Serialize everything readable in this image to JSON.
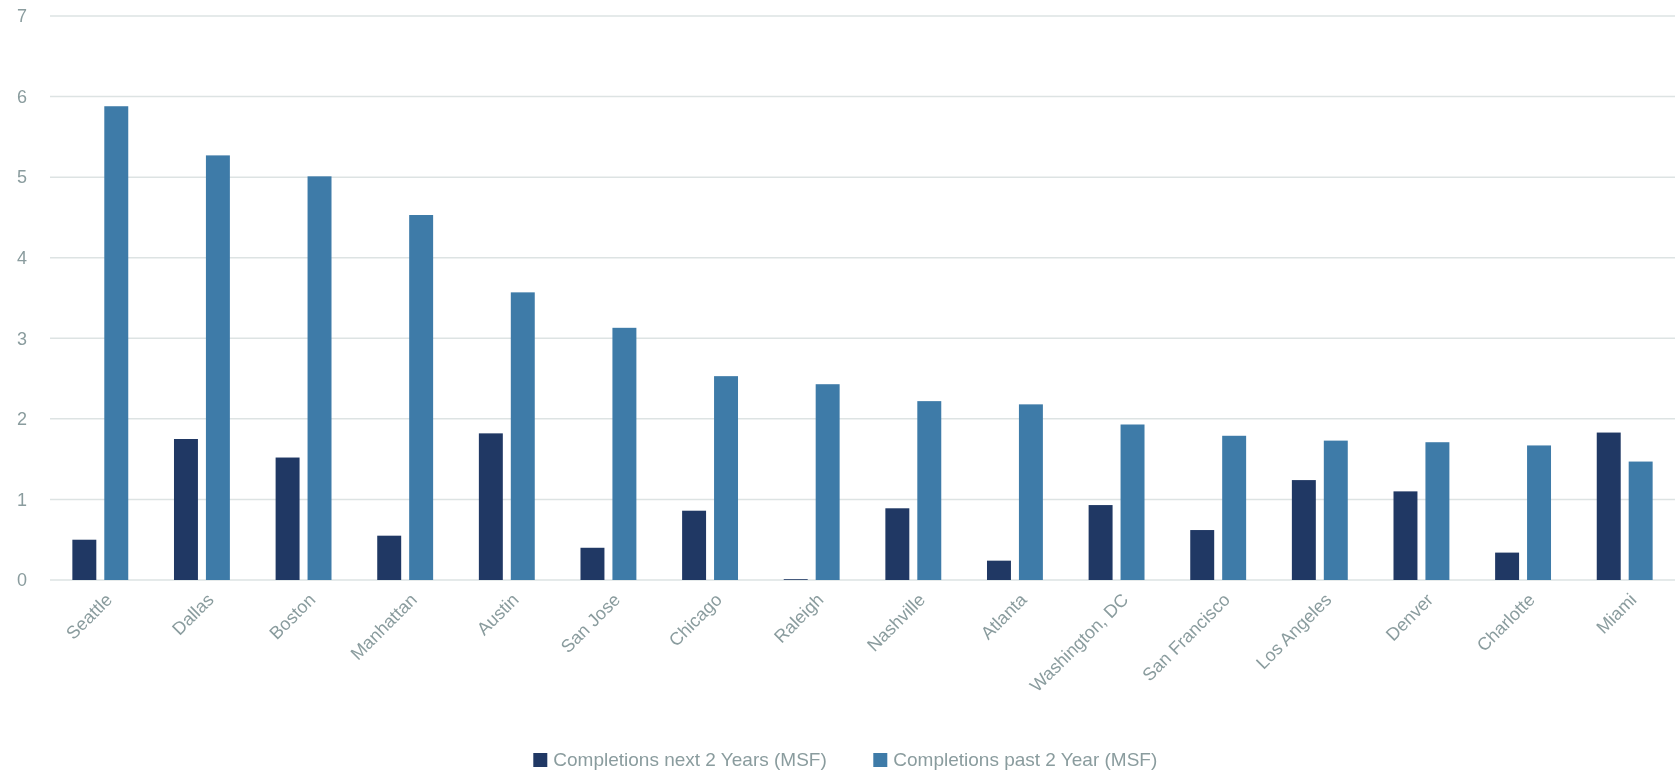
{
  "chart_data": {
    "type": "bar",
    "categories": [
      "Seattle",
      "Dallas",
      "Boston",
      "Manhattan",
      "Austin",
      "San Jose",
      "Chicago",
      "Raleigh",
      "Nashville",
      "Atlanta",
      "Washington, DC",
      "San Francisco",
      "Los Angeles",
      "Denver",
      "Charlotte",
      "Miami"
    ],
    "series": [
      {
        "name": "Completions next 2 Years (MSF)",
        "color": "#203864",
        "values": [
          0.5,
          1.75,
          1.52,
          0.55,
          1.82,
          0.4,
          0.86,
          0.01,
          0.89,
          0.24,
          0.93,
          0.62,
          1.24,
          1.1,
          0.34,
          1.83
        ]
      },
      {
        "name": "Completions past 2 Year (MSF)",
        "color": "#3e7ba8",
        "values": [
          5.88,
          5.27,
          5.01,
          4.53,
          3.57,
          3.13,
          2.53,
          2.43,
          2.22,
          2.18,
          1.93,
          1.79,
          1.73,
          1.71,
          1.67,
          1.47
        ]
      }
    ],
    "ylim": [
      0,
      7
    ],
    "yticks": [
      0,
      1,
      2,
      3,
      4,
      5,
      6,
      7
    ],
    "grid": "y",
    "legend": "bottom"
  }
}
